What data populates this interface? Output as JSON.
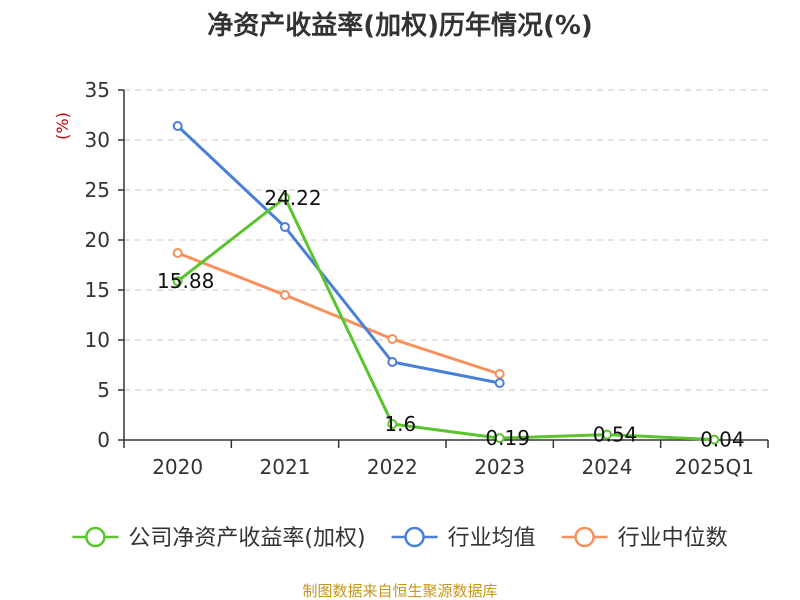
{
  "chart_data": {
    "type": "line",
    "title": "净资产收益率(加权)历年情况(%)",
    "ylabel": "(%)",
    "xlabel": "",
    "categories": [
      "2020",
      "2021",
      "2022",
      "2023",
      "2024",
      "2025Q1"
    ],
    "ylim": [
      0,
      35
    ],
    "yticks": [
      0,
      5,
      10,
      15,
      20,
      25,
      30,
      35
    ],
    "grid": true,
    "legend_position": "bottom",
    "series": [
      {
        "name": "公司净资产收益率(加权)",
        "color": "#5ac42e",
        "values": [
          15.88,
          24.22,
          1.6,
          0.19,
          0.54,
          0.04
        ],
        "labels": [
          "15.88",
          "24.22",
          "1.6",
          "0.19",
          "0.54",
          "0.04"
        ]
      },
      {
        "name": "行业均值",
        "color": "#4a7fd8",
        "values": [
          31.4,
          21.3,
          7.8,
          5.7,
          null,
          null
        ],
        "labels": []
      },
      {
        "name": "行业中位数",
        "color": "#f7905a",
        "values": [
          18.7,
          14.5,
          10.1,
          6.6,
          null,
          null
        ],
        "labels": []
      }
    ],
    "source": "制图数据来自恒生聚源数据库"
  }
}
